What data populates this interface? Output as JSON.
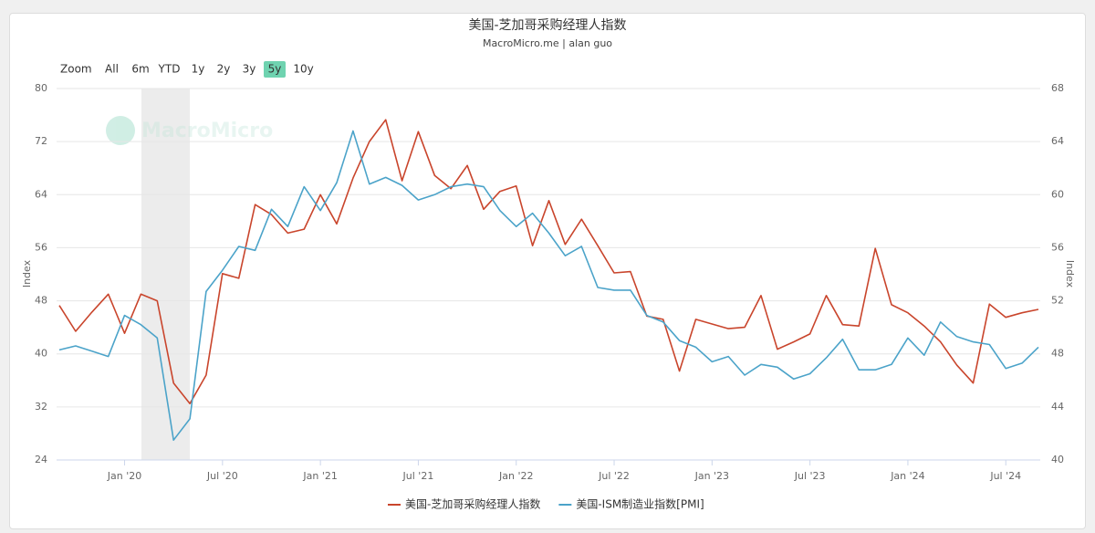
{
  "chart_data": {
    "type": "line",
    "title": "美国-芝加哥采购经理人指数",
    "subtitle": "MacroMicro.me | alan guo",
    "watermark": "MacroMicro",
    "range_selector": {
      "label": "Zoom",
      "buttons": [
        "All",
        "6m",
        "YTD",
        "1y",
        "2y",
        "3y",
        "5y",
        "10y"
      ],
      "selected": 6
    },
    "categories": [
      null,
      null,
      null,
      null,
      "Jan '20",
      null,
      null,
      null,
      null,
      null,
      "Jul '20",
      null,
      null,
      null,
      null,
      null,
      "Jan '21",
      null,
      null,
      null,
      null,
      null,
      "Jul '21",
      null,
      null,
      null,
      null,
      null,
      "Jan '22",
      null,
      null,
      null,
      null,
      null,
      "Jul '22",
      null,
      null,
      null,
      null,
      null,
      "Jan '23",
      null,
      null,
      null,
      null,
      null,
      "Jul '23",
      null,
      null,
      null,
      null,
      null,
      "Jan '24",
      null,
      null,
      null,
      null,
      null,
      "Jul '24",
      null,
      null
    ],
    "series": [
      {
        "name": "美国-芝加哥采购经理人指数",
        "color": "#c9452c",
        "axis": "y",
        "values": [
          47.3,
          43.4,
          46.3,
          49.0,
          43.1,
          49.0,
          48.0,
          35.6,
          32.5,
          36.8,
          52.1,
          51.4,
          62.5,
          61.0,
          58.2,
          58.8,
          64.0,
          59.6,
          66.5,
          72.0,
          75.3,
          66.1,
          73.5,
          66.9,
          64.9,
          68.4,
          61.8,
          64.5,
          65.3,
          56.3,
          63.1,
          56.5,
          60.3,
          56.3,
          52.2,
          52.4,
          45.7,
          45.2,
          37.4,
          45.2,
          44.5,
          43.8,
          44.0,
          48.8,
          40.7,
          41.8,
          43.0,
          48.8,
          44.4,
          44.2,
          55.9,
          47.4,
          46.2,
          44.2,
          41.8,
          38.3,
          35.6,
          47.5,
          45.5,
          46.2,
          46.7
        ]
      },
      {
        "name": "美国-ISM制造业指数[PMI]",
        "color": "#4ba3c9",
        "axis": "y2",
        "values": [
          48.3,
          48.6,
          48.2,
          47.8,
          50.9,
          50.2,
          49.2,
          41.5,
          43.1,
          52.7,
          54.3,
          56.1,
          55.8,
          58.9,
          57.6,
          60.6,
          58.8,
          60.9,
          64.8,
          60.8,
          61.3,
          60.7,
          59.6,
          60.0,
          60.6,
          60.8,
          60.6,
          58.8,
          57.6,
          58.6,
          57.1,
          55.4,
          56.1,
          53.0,
          52.8,
          52.8,
          50.9,
          50.4,
          49.0,
          48.5,
          47.4,
          47.8,
          46.4,
          47.2,
          47.0,
          46.1,
          46.5,
          47.7,
          49.1,
          46.8,
          46.8,
          47.2,
          49.2,
          47.9,
          50.4,
          49.3,
          48.9,
          48.7,
          46.9,
          47.3,
          48.5
        ]
      }
    ],
    "ylabel": "Index",
    "y2label": "Index",
    "ylim": [
      24,
      80
    ],
    "yticks": [
      24,
      32,
      40,
      48,
      56,
      64,
      72,
      80
    ],
    "y2lim": [
      40,
      68
    ],
    "y2ticks": [
      40,
      44,
      48,
      52,
      56,
      60,
      64,
      68
    ],
    "grid": true,
    "legend": "bottom"
  }
}
